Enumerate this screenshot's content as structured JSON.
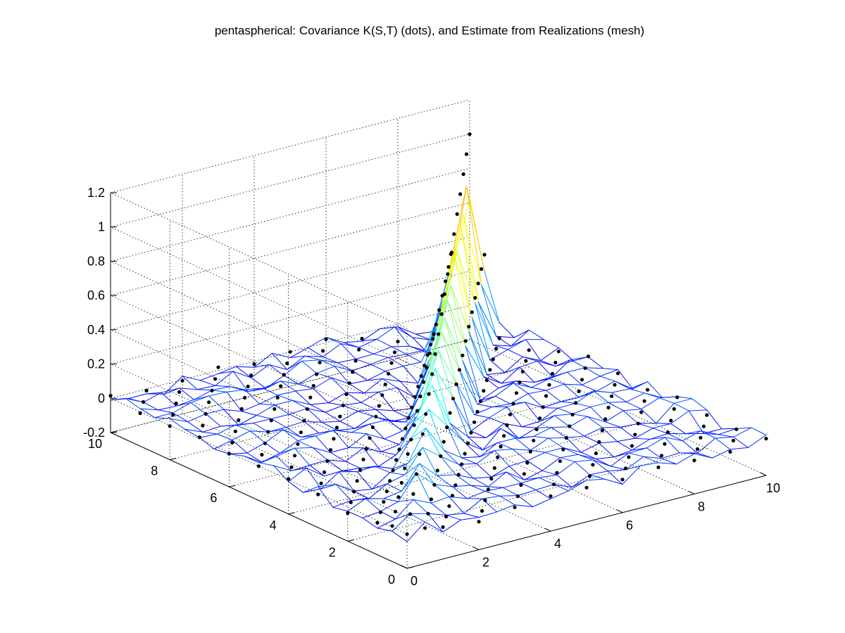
{
  "chart_data": {
    "type": "surface-mesh-3d",
    "title": "pentaspherical: Covariance K(S,T) (dots), and Estimate from Realizations (mesh)",
    "xlabel": "",
    "ylabel": "",
    "zlabel": "",
    "xlim": [
      0,
      10
    ],
    "ylim": [
      0,
      10
    ],
    "zlim": [
      -0.2,
      1.2
    ],
    "x_ticks": [
      0,
      2,
      4,
      6,
      8,
      10
    ],
    "y_ticks": [
      0,
      2,
      4,
      6,
      8,
      10
    ],
    "z_ticks": [
      -0.2,
      0,
      0.2,
      0.4,
      0.6,
      0.8,
      1,
      1.2
    ],
    "x_tick_labels": [
      "0",
      "2",
      "4",
      "6",
      "8",
      "10"
    ],
    "y_tick_labels": [
      "0",
      "2",
      "4",
      "6",
      "8",
      "10"
    ],
    "z_tick_labels": [
      "-0.2",
      "0",
      "0.2",
      "0.4",
      "0.6",
      "0.8",
      "1",
      "1.2"
    ],
    "grid": true,
    "colormap": "jet",
    "colors": {
      "mesh_low": "#0000b0",
      "mesh_high": "#b00000",
      "dots": "#000000"
    },
    "grid_points": 21,
    "series": [
      {
        "name": "Covariance K(S,T) (dots)",
        "marker": "dots",
        "description_of_shape": "ridge along S=T, peak 1.0 at (10,10), dips to about -0.15 beside the diagonal, near 0 far from it",
        "diagonal_values": [
          0.0,
          0.05,
          0.1,
          0.15,
          0.2,
          0.25,
          0.3,
          0.35,
          0.4,
          0.45,
          0.5,
          0.55,
          0.6,
          0.65,
          0.7,
          0.75,
          0.8,
          0.85,
          0.9,
          0.95,
          1.0
        ]
      },
      {
        "name": "Estimate from Realizations (mesh)",
        "marker": "mesh",
        "description_of_shape": "noisy estimate of the same ridge, peak about 0.75 near (9,9), small fluctuations around 0 away from diagonal",
        "diagonal_values": [
          0.0,
          0.03,
          0.08,
          0.12,
          0.18,
          0.2,
          0.24,
          0.3,
          0.33,
          0.38,
          0.42,
          0.46,
          0.5,
          0.52,
          0.56,
          0.6,
          0.62,
          0.66,
          0.7,
          0.75,
          0.62
        ]
      }
    ]
  }
}
